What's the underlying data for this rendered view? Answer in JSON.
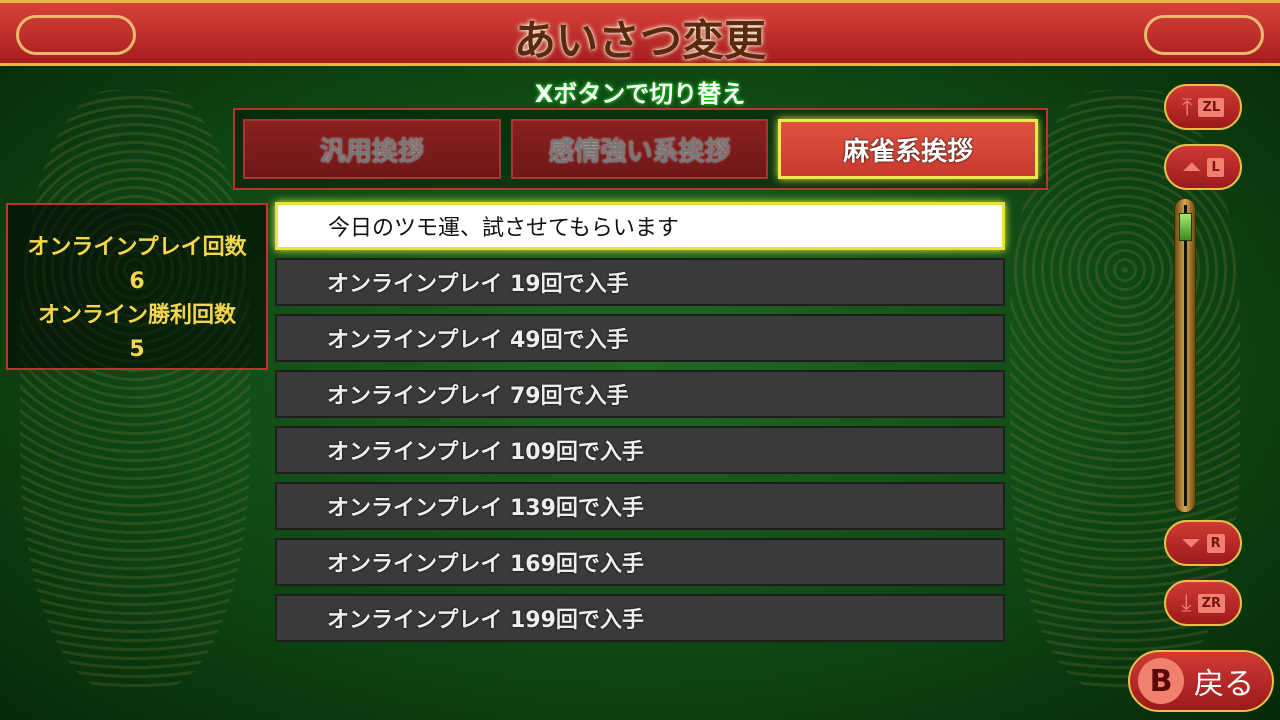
{
  "header": {
    "title": "あいさつ変更"
  },
  "hint": "Xボタンで切り替え",
  "tabs": [
    {
      "label": "汎用挨拶",
      "active": false
    },
    {
      "label": "感情強い系挨拶",
      "active": false
    },
    {
      "label": "麻雀系挨拶",
      "active": true
    }
  ],
  "stats": {
    "play_label": "オンラインプレイ回数",
    "play_count": "6",
    "win_label": "オンライン勝利回数",
    "win_count": "5"
  },
  "list": [
    "今日のツモ運、試させてもらいます",
    "オンラインプレイ 19回で入手",
    "オンラインプレイ 49回で入手",
    "オンラインプレイ 79回で入手",
    "オンラインプレイ 109回で入手",
    "オンラインプレイ 139回で入手",
    "オンラインプレイ 169回で入手",
    "オンラインプレイ 199回で入手"
  ],
  "nav": {
    "top": "ZL",
    "page_up": "L",
    "page_down": "R",
    "bottom": "ZR"
  },
  "scroll_position": 0.0,
  "back": {
    "key": "B",
    "label": "戻る"
  }
}
